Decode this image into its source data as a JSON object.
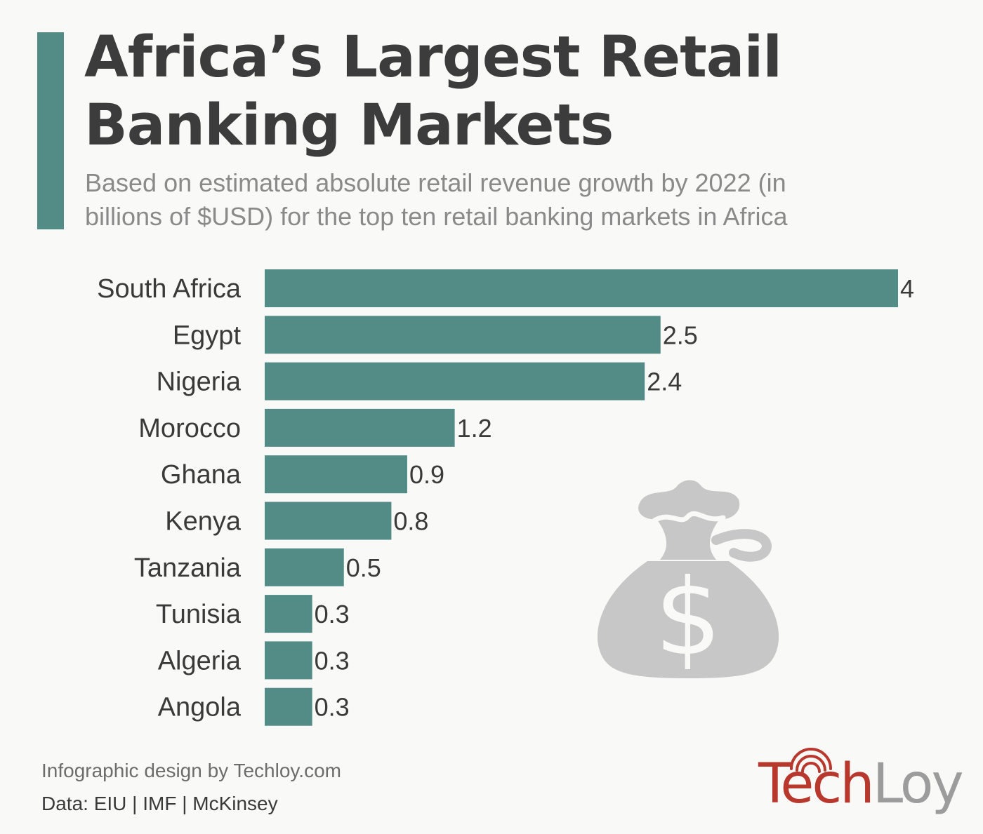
{
  "colors": {
    "accent": "#538c87",
    "bar": "#538c87",
    "icon": "#c7c7c7",
    "logo_tech": "#b8382e",
    "logo_loy": "#9c9c9c"
  },
  "header": {
    "title_line1": "Africa’s Largest Retail",
    "title_line2": "Banking Markets",
    "subtitle_line1": "Based on estimated absolute retail revenue growth by 2022 (in",
    "subtitle_line2": "billions of $USD) for the top ten retail banking markets in Africa"
  },
  "chart_data": {
    "type": "bar",
    "orientation": "horizontal",
    "title": "Africa’s Largest Retail Banking Markets",
    "xlabel": "",
    "ylabel": "",
    "xlim": [
      0,
      4
    ],
    "grid": false,
    "categories": [
      "South Africa",
      "Egypt",
      "Nigeria",
      "Morocco",
      "Ghana",
      "Kenya",
      "Tanzania",
      "Tunisia",
      "Algeria",
      "Angola"
    ],
    "values": [
      4,
      2.5,
      2.4,
      1.2,
      0.9,
      0.8,
      0.5,
      0.3,
      0.3,
      0.3
    ],
    "labels": [
      "4",
      "2.5",
      "2.4",
      "1.2",
      "0.9",
      "0.8",
      "0.5",
      "0.3",
      "0.3",
      "0.3"
    ]
  },
  "icons": {
    "money_bag": "money-bag-icon",
    "logo_signal": "signal-arcs-icon"
  },
  "footer": {
    "credit": "Infographic design by Techloy.com",
    "source": "Data: EIU | IMF | McKinsey",
    "logo_part1": "Tech",
    "logo_part2": "Loy"
  }
}
